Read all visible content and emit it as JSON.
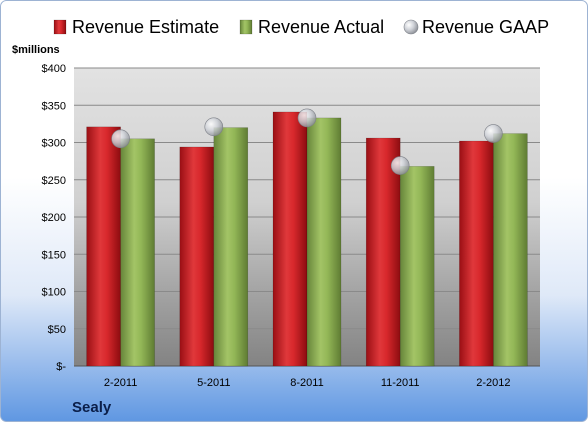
{
  "chart_data": {
    "type": "bar",
    "company": "Sealy",
    "unit_label": "$millions",
    "categories": [
      "2-2011",
      "5-2011",
      "8-2011",
      "11-2011",
      "2-2012"
    ],
    "series": [
      {
        "name": "Revenue Estimate",
        "kind": "bar",
        "color": "#d42428",
        "values": [
          321,
          294,
          341,
          306,
          302
        ]
      },
      {
        "name": "Revenue Actual",
        "kind": "bar",
        "color": "#8fb24e",
        "values": [
          305,
          320,
          333,
          268,
          312
        ]
      },
      {
        "name": "Revenue GAAP",
        "kind": "marker",
        "color": "#c8cbd2",
        "values": [
          305,
          321,
          333,
          269,
          312
        ]
      }
    ],
    "ylim": [
      0,
      400
    ],
    "y_ticks": [
      0,
      50,
      100,
      150,
      200,
      250,
      300,
      350,
      400
    ],
    "y_tick_labels": [
      "$-",
      "$50",
      "$100",
      "$150",
      "$200",
      "$250",
      "$300",
      "$350",
      "$400"
    ],
    "legend_position": "top",
    "grid": true
  }
}
